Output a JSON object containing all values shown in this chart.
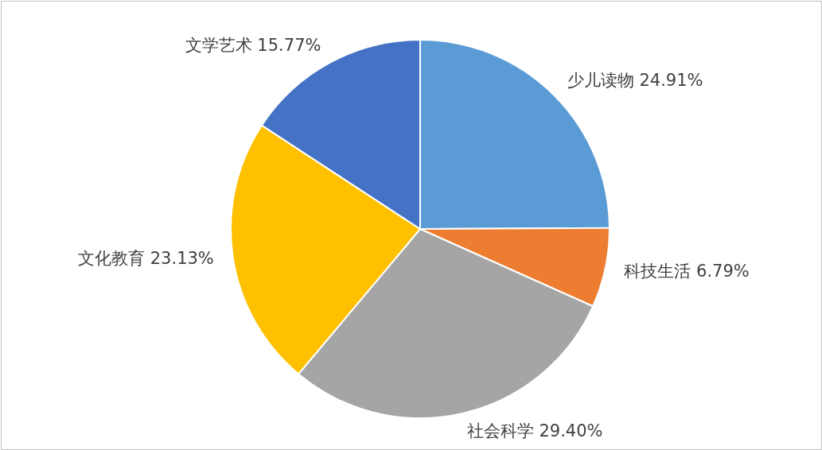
{
  "chart_data": {
    "type": "pie",
    "categories": [
      "少儿读物",
      "科技生活",
      "社会科学",
      "文化教育",
      "文学艺术"
    ],
    "values": [
      24.91,
      6.79,
      29.4,
      23.13,
      15.77
    ],
    "colors": [
      "#5b9bd5",
      "#ed7d31",
      "#a5a5a5",
      "#ffc000",
      "#4472c4"
    ],
    "value_labels": [
      "24.91%",
      "6.79%",
      "29.40%",
      "23.13%",
      "15.77%"
    ]
  }
}
